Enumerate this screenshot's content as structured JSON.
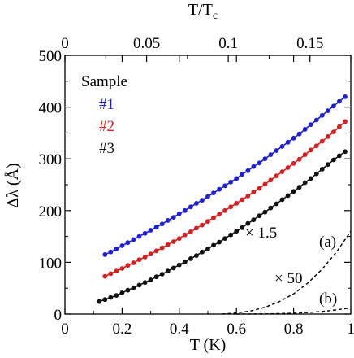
{
  "chart_data": {
    "type": "scatter",
    "title": "",
    "xlabel": "T (K)",
    "ylabel": "Δλ (Å)",
    "x2label_main": "T/T",
    "x2label_sub": "c",
    "xlim": [
      0,
      1
    ],
    "ylim": [
      0,
      500
    ],
    "x2lim": [
      0,
      0.175
    ],
    "xticks": [
      "0",
      "0.2",
      "0.4",
      "0.6",
      "0.8",
      "1"
    ],
    "xtick_values": [
      0,
      0.2,
      0.4,
      0.6,
      0.8,
      1.0
    ],
    "yticks": [
      "0",
      "100",
      "200",
      "300",
      "400",
      "500"
    ],
    "ytick_values": [
      0,
      100,
      200,
      300,
      400,
      500
    ],
    "x2ticks": [
      "0",
      "0.05",
      "0.1",
      "0.15"
    ],
    "x2tick_values": [
      0,
      0.05,
      0.1,
      0.15
    ],
    "legend": {
      "title": "Sample",
      "entries": [
        {
          "label": "#1",
          "color": "#1f1fd6"
        },
        {
          "label": "#2",
          "color": "#d81f1f"
        },
        {
          "label": "#3",
          "color": "#111111"
        }
      ]
    },
    "series": [
      {
        "name": "#1",
        "color": "#1f1fd6",
        "x": [
          0.14,
          0.16,
          0.18,
          0.2,
          0.22,
          0.24,
          0.26,
          0.28,
          0.3,
          0.32,
          0.34,
          0.36,
          0.38,
          0.4,
          0.42,
          0.44,
          0.46,
          0.48,
          0.5,
          0.52,
          0.54,
          0.56,
          0.58,
          0.6,
          0.62,
          0.64,
          0.66,
          0.68,
          0.7,
          0.72,
          0.74,
          0.76,
          0.78,
          0.8,
          0.82,
          0.84,
          0.86,
          0.88,
          0.9,
          0.92,
          0.94,
          0.96,
          0.98
        ],
        "y": [
          115,
          120,
          126,
          132,
          138,
          144,
          150,
          156,
          162,
          168,
          174,
          181,
          187,
          194,
          200,
          207,
          214,
          220,
          227,
          234,
          241,
          248,
          255,
          262,
          270,
          277,
          285,
          292,
          300,
          308,
          316,
          324,
          332,
          340,
          348,
          357,
          366,
          375,
          384,
          393,
          402,
          411,
          420
        ]
      },
      {
        "name": "#2",
        "color": "#d81f1f",
        "x": [
          0.14,
          0.16,
          0.18,
          0.2,
          0.22,
          0.24,
          0.26,
          0.28,
          0.3,
          0.32,
          0.34,
          0.36,
          0.38,
          0.4,
          0.42,
          0.44,
          0.46,
          0.48,
          0.5,
          0.52,
          0.54,
          0.56,
          0.58,
          0.6,
          0.62,
          0.64,
          0.66,
          0.68,
          0.7,
          0.72,
          0.74,
          0.76,
          0.78,
          0.8,
          0.82,
          0.84,
          0.86,
          0.88,
          0.9,
          0.92,
          0.94,
          0.96,
          0.98
        ],
        "y": [
          73,
          78,
          83,
          88,
          94,
          99,
          105,
          110,
          116,
          122,
          128,
          134,
          140,
          146,
          153,
          159,
          166,
          172,
          179,
          186,
          193,
          200,
          207,
          214,
          221,
          228,
          236,
          243,
          251,
          259,
          267,
          275,
          283,
          291,
          299,
          308,
          317,
          325,
          334,
          343,
          352,
          362,
          372
        ]
      },
      {
        "name": "#3",
        "color": "#111111",
        "x": [
          0.12,
          0.14,
          0.16,
          0.18,
          0.2,
          0.22,
          0.24,
          0.26,
          0.28,
          0.3,
          0.32,
          0.34,
          0.36,
          0.38,
          0.4,
          0.42,
          0.44,
          0.46,
          0.48,
          0.5,
          0.52,
          0.54,
          0.56,
          0.58,
          0.6,
          0.62,
          0.64,
          0.66,
          0.68,
          0.7,
          0.72,
          0.74,
          0.76,
          0.78,
          0.8,
          0.82,
          0.84,
          0.86,
          0.88,
          0.9,
          0.92,
          0.94,
          0.96,
          0.98
        ],
        "y": [
          24,
          28,
          32,
          36,
          41,
          46,
          51,
          56,
          61,
          66,
          72,
          77,
          83,
          89,
          95,
          101,
          107,
          113,
          120,
          126,
          133,
          139,
          146,
          153,
          160,
          167,
          175,
          182,
          190,
          197,
          205,
          213,
          221,
          229,
          237,
          245,
          254,
          262,
          271,
          280,
          289,
          298,
          306,
          314
        ]
      }
    ],
    "dashed_curves": [
      {
        "label": "(a)",
        "x": [
          0.55,
          0.6,
          0.65,
          0.7,
          0.75,
          0.8,
          0.85,
          0.9,
          0.95,
          1.0
        ],
        "y": [
          0,
          2,
          6,
          13,
          24,
          39,
          60,
          87,
          120,
          160
        ]
      },
      {
        "label": "(b)",
        "x": [
          0.6,
          0.7,
          0.8,
          0.85,
          0.9,
          0.95,
          1.0
        ],
        "y": [
          0,
          0.3,
          1.5,
          3,
          5,
          8,
          12
        ]
      }
    ],
    "annotations": [
      {
        "text": "× 1.5"
      },
      {
        "text": "× 50"
      },
      {
        "text": "(a)"
      },
      {
        "text": "(b)"
      }
    ]
  }
}
